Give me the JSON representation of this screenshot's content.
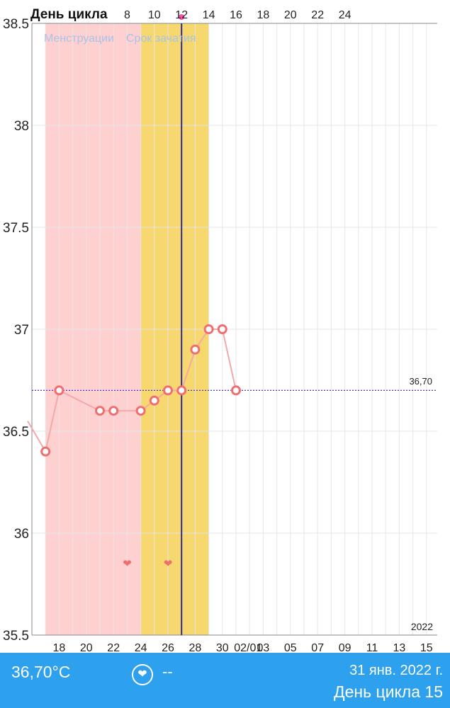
{
  "chart_data": {
    "type": "line",
    "header_label": "День цикла",
    "cycle_day_ticks": [
      "8",
      "10",
      "12",
      "14",
      "16",
      "18",
      "20",
      "22",
      "24"
    ],
    "legend": [
      "Менструации",
      "Срок зачатия"
    ],
    "y_ticks": [
      "38.5",
      "38",
      "37.5",
      "37",
      "36.5",
      "36",
      "35.5"
    ],
    "ylim": [
      35.5,
      38.5
    ],
    "x_tick_labels": [
      "18",
      "20",
      "22",
      "24",
      "26",
      "28",
      "30",
      "02/01",
      "03",
      "05",
      "07",
      "09",
      "11",
      "13",
      "15"
    ],
    "year_label": "2022",
    "reference_line": {
      "value": 36.7,
      "label": "36,70",
      "color": "#3b3bd6"
    },
    "menstruation_period": {
      "start_day": 17,
      "end_day": 24,
      "color": "#ffd0d0"
    },
    "fertile_window": {
      "start_day": 24,
      "end_day": 29,
      "color": "#f7d86f"
    },
    "current_day": {
      "day": 27,
      "color": "#2b2b9a"
    },
    "series": [
      {
        "color": "#ef6f70",
        "points": [
          {
            "day": 17,
            "temp": 36.4
          },
          {
            "day": 18,
            "temp": 36.7
          },
          {
            "day": 21,
            "temp": 36.6
          },
          {
            "day": 22,
            "temp": 36.6
          },
          {
            "day": 24,
            "temp": 36.6
          },
          {
            "day": 25,
            "temp": 36.65
          },
          {
            "day": 26,
            "temp": 36.7
          },
          {
            "day": 27,
            "temp": 36.7
          },
          {
            "day": 28,
            "temp": 36.9
          },
          {
            "day": 29,
            "temp": 37.0
          },
          {
            "day": 30,
            "temp": 37.0
          },
          {
            "day": 31,
            "temp": 36.7
          }
        ]
      }
    ],
    "heart_markers": [
      {
        "day": 23,
        "temp": 35.85
      },
      {
        "day": 26,
        "temp": 35.85
      }
    ]
  },
  "bottom_bar": {
    "temperature": "36,70°C",
    "heart_value": "--",
    "date": "31 янв. 2022 г.",
    "cycle_day_label": "День цикла",
    "cycle_day_number": "15",
    "background_color": "#2ea1ee"
  },
  "icons": {
    "heart_button": "heart-icon"
  }
}
